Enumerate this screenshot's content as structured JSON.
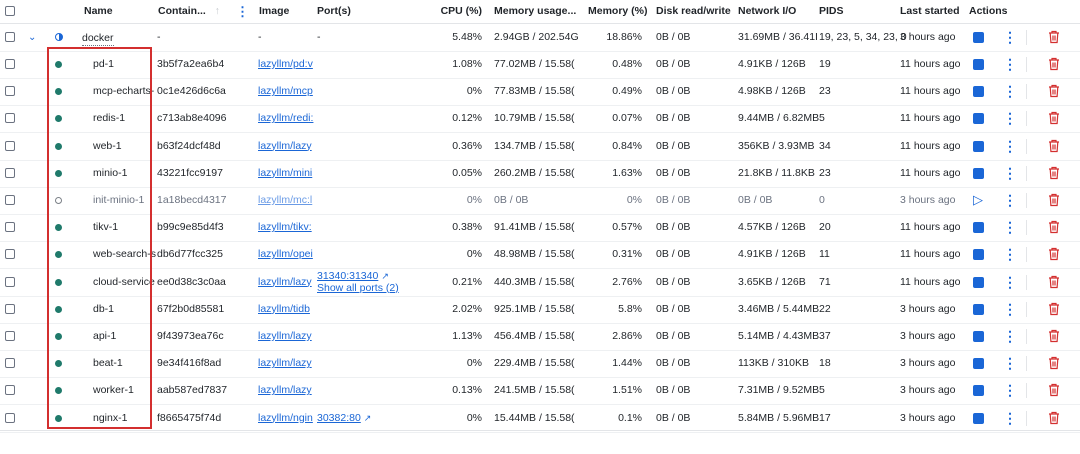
{
  "headers": {
    "name": "Name",
    "container_id": "Contain...",
    "image": "Image",
    "ports": "Port(s)",
    "cpu": "CPU (%)",
    "memory_usage": "Memory usage...",
    "memory_pct": "Memory (%)",
    "disk": "Disk read/write",
    "network": "Network I/O",
    "pids": "PIDS",
    "last_started": "Last started",
    "actions": "Actions"
  },
  "group": {
    "name": "docker",
    "container_id": "-",
    "image": "-",
    "ports": "-",
    "cpu": "5.48%",
    "memory_usage": "2.94GB / 202.54G",
    "memory_pct": "18.86%",
    "disk": "0B / 0B",
    "network": "31.69MB / 36.41I",
    "pids": "19, 23, 5, 34, 23, 0",
    "last_started": "3 hours ago"
  },
  "rows": [
    {
      "name": "pd-1",
      "id": "3b5f7a2ea6b4",
      "image": "lazyllm/pd:v",
      "cpu": "1.08%",
      "mem": "77.02MB / 15.58(",
      "mempct": "0.48%",
      "disk": "0B / 0B",
      "net": "4.91KB / 126B",
      "pids": "19",
      "started": "11 hours ago",
      "running": true
    },
    {
      "name": "mcp-echarts-",
      "id": "0c1e426d6c6a",
      "image": "lazyllm/mcp",
      "cpu": "0%",
      "mem": "77.83MB / 15.58(",
      "mempct": "0.49%",
      "disk": "0B / 0B",
      "net": "4.98KB / 126B",
      "pids": "23",
      "started": "11 hours ago",
      "running": true
    },
    {
      "name": "redis-1",
      "id": "c713ab8e4096",
      "image": "lazyllm/redi:",
      "cpu": "0.12%",
      "mem": "10.79MB / 15.58(",
      "mempct": "0.07%",
      "disk": "0B / 0B",
      "net": "9.44MB / 6.82MB",
      "pids": "5",
      "started": "11 hours ago",
      "running": true
    },
    {
      "name": "web-1",
      "id": "b63f24dcf48d",
      "image": "lazyllm/lazy",
      "cpu": "0.36%",
      "mem": "134.7MB / 15.58(",
      "mempct": "0.84%",
      "disk": "0B / 0B",
      "net": "356KB / 3.93MB",
      "pids": "34",
      "started": "11 hours ago",
      "running": true
    },
    {
      "name": "minio-1",
      "id": "43221fcc9197",
      "image": "lazyllm/mini",
      "cpu": "0.05%",
      "mem": "260.2MB / 15.58(",
      "mempct": "1.63%",
      "disk": "0B / 0B",
      "net": "21.8KB / 11.8KB",
      "pids": "23",
      "started": "11 hours ago",
      "running": true
    },
    {
      "name": "init-minio-1",
      "id": "1a18becd4317",
      "image": "lazyllm/mc:l",
      "cpu": "0%",
      "mem": "0B / 0B",
      "mempct": "0%",
      "disk": "0B / 0B",
      "net": "0B / 0B",
      "pids": "0",
      "started": "3 hours ago",
      "running": false
    },
    {
      "name": "tikv-1",
      "id": "b99c9e85d4f3",
      "image": "lazyllm/tikv:",
      "cpu": "0.38%",
      "mem": "91.41MB / 15.58(",
      "mempct": "0.57%",
      "disk": "0B / 0B",
      "net": "4.57KB / 126B",
      "pids": "20",
      "started": "11 hours ago",
      "running": true
    },
    {
      "name": "web-search-s",
      "id": "db6d77fcc325",
      "image": "lazyllm/opei",
      "cpu": "0%",
      "mem": "48.98MB / 15.58(",
      "mempct": "0.31%",
      "disk": "0B / 0B",
      "net": "4.91KB / 126B",
      "pids": "11",
      "started": "11 hours ago",
      "running": true
    },
    {
      "name": "cloud-service",
      "id": "ee0d38c3c0aa",
      "image": "lazyllm/lazy",
      "port1": "31340:31340",
      "port2": "Show all ports (2)",
      "cpu": "0.21%",
      "mem": "440.3MB / 15.58(",
      "mempct": "2.76%",
      "disk": "0B / 0B",
      "net": "3.65KB / 126B",
      "pids": "71",
      "started": "11 hours ago",
      "running": true
    },
    {
      "name": "db-1",
      "id": "67f2b0d85581",
      "image": "lazyllm/tidb",
      "cpu": "2.02%",
      "mem": "925.1MB / 15.58(",
      "mempct": "5.8%",
      "disk": "0B / 0B",
      "net": "3.46MB / 5.44MB",
      "pids": "22",
      "started": "3 hours ago",
      "running": true
    },
    {
      "name": "api-1",
      "id": "9f43973ea76c",
      "image": "lazyllm/lazy",
      "cpu": "1.13%",
      "mem": "456.4MB / 15.58(",
      "mempct": "2.86%",
      "disk": "0B / 0B",
      "net": "5.14MB / 4.43MB",
      "pids": "37",
      "started": "3 hours ago",
      "running": true
    },
    {
      "name": "beat-1",
      "id": "9e34f416f8ad",
      "image": "lazyllm/lazy",
      "cpu": "0%",
      "mem": "229.4MB / 15.58(",
      "mempct": "1.44%",
      "disk": "0B / 0B",
      "net": "113KB / 310KB",
      "pids": "18",
      "started": "3 hours ago",
      "running": true
    },
    {
      "name": "worker-1",
      "id": "aab587ed7837",
      "image": "lazyllm/lazy",
      "cpu": "0.13%",
      "mem": "241.5MB / 15.58(",
      "mempct": "1.51%",
      "disk": "0B / 0B",
      "net": "7.31MB / 9.52MB",
      "pids": "5",
      "started": "3 hours ago",
      "running": true
    },
    {
      "name": "nginx-1",
      "id": "f8665475f74d",
      "image": "lazyllm/ngin",
      "port1": "30382:80",
      "cpu": "0%",
      "mem": "15.44MB / 15.58(",
      "mempct": "0.1%",
      "disk": "0B / 0B",
      "net": "5.84MB / 5.96MB",
      "pids": "17",
      "started": "3 hours ago",
      "running": true
    }
  ],
  "icons": {
    "running": "running-status-dot",
    "stopped": "stopped-status-dot",
    "stop": "stop-icon",
    "start": "play-icon",
    "menu": "kebab-menu-icon",
    "delete": "trash-icon",
    "external": "external-link-icon"
  },
  "colors": {
    "accent": "#1a66d6",
    "running": "#1f7a6b",
    "delete": "#d32f2f",
    "highlight": "#d32f2f"
  }
}
